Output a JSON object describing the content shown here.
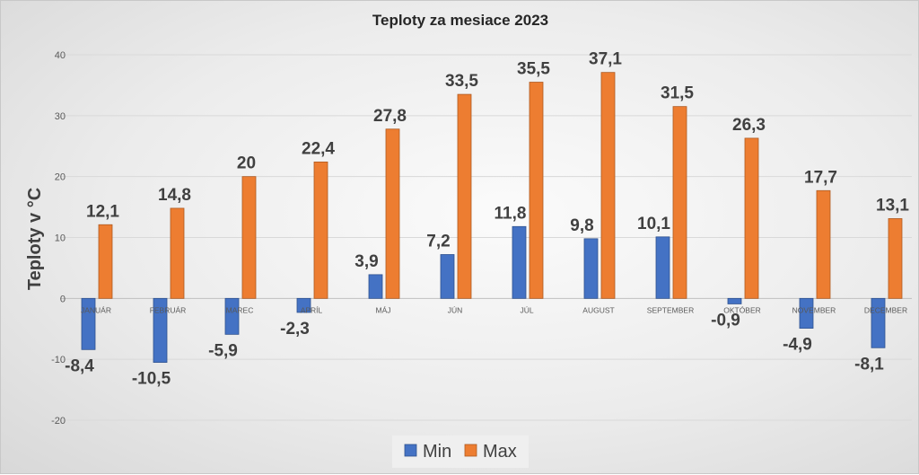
{
  "chart_data": {
    "type": "bar",
    "title": "Teploty za mesiace 2023",
    "ylabel": "Teploty v °C",
    "xlabel": "",
    "ylim": [
      -20,
      40
    ],
    "yticks": [
      -20,
      -10,
      0,
      10,
      20,
      30,
      40
    ],
    "grid": true,
    "legend_position": "bottom",
    "categories": [
      "JANUÁR",
      "FEBRUÁR",
      "MAREC",
      "APRÍL",
      "MÁJ",
      "JÚN",
      "JÚL",
      "AUGUST",
      "SEPTEMBER",
      "OKTÓBER",
      "NOVEMBER",
      "DECEMBER"
    ],
    "series": [
      {
        "name": "Min",
        "color": "#4472C4",
        "values": [
          -8.4,
          -10.5,
          -5.9,
          -2.3,
          3.9,
          7.2,
          11.8,
          9.8,
          10.1,
          -0.9,
          -4.9,
          -8.1
        ],
        "labels": [
          "-8,4",
          "-10,5",
          "-5,9",
          "-2,3",
          "3,9",
          "7,2",
          "11,8",
          "9,8",
          "10,1",
          "-0,9",
          "-4,9",
          "-8,1"
        ]
      },
      {
        "name": "Max",
        "color": "#ED7D31",
        "values": [
          12.1,
          14.8,
          20,
          22.4,
          27.8,
          33.5,
          35.5,
          37.1,
          31.5,
          26.3,
          17.7,
          13.1
        ],
        "labels": [
          "12,1",
          "14,8",
          "20",
          "22,4",
          "27,8",
          "33,5",
          "35,5",
          "37,1",
          "31,5",
          "26,3",
          "17,7",
          "13,1"
        ]
      }
    ]
  }
}
